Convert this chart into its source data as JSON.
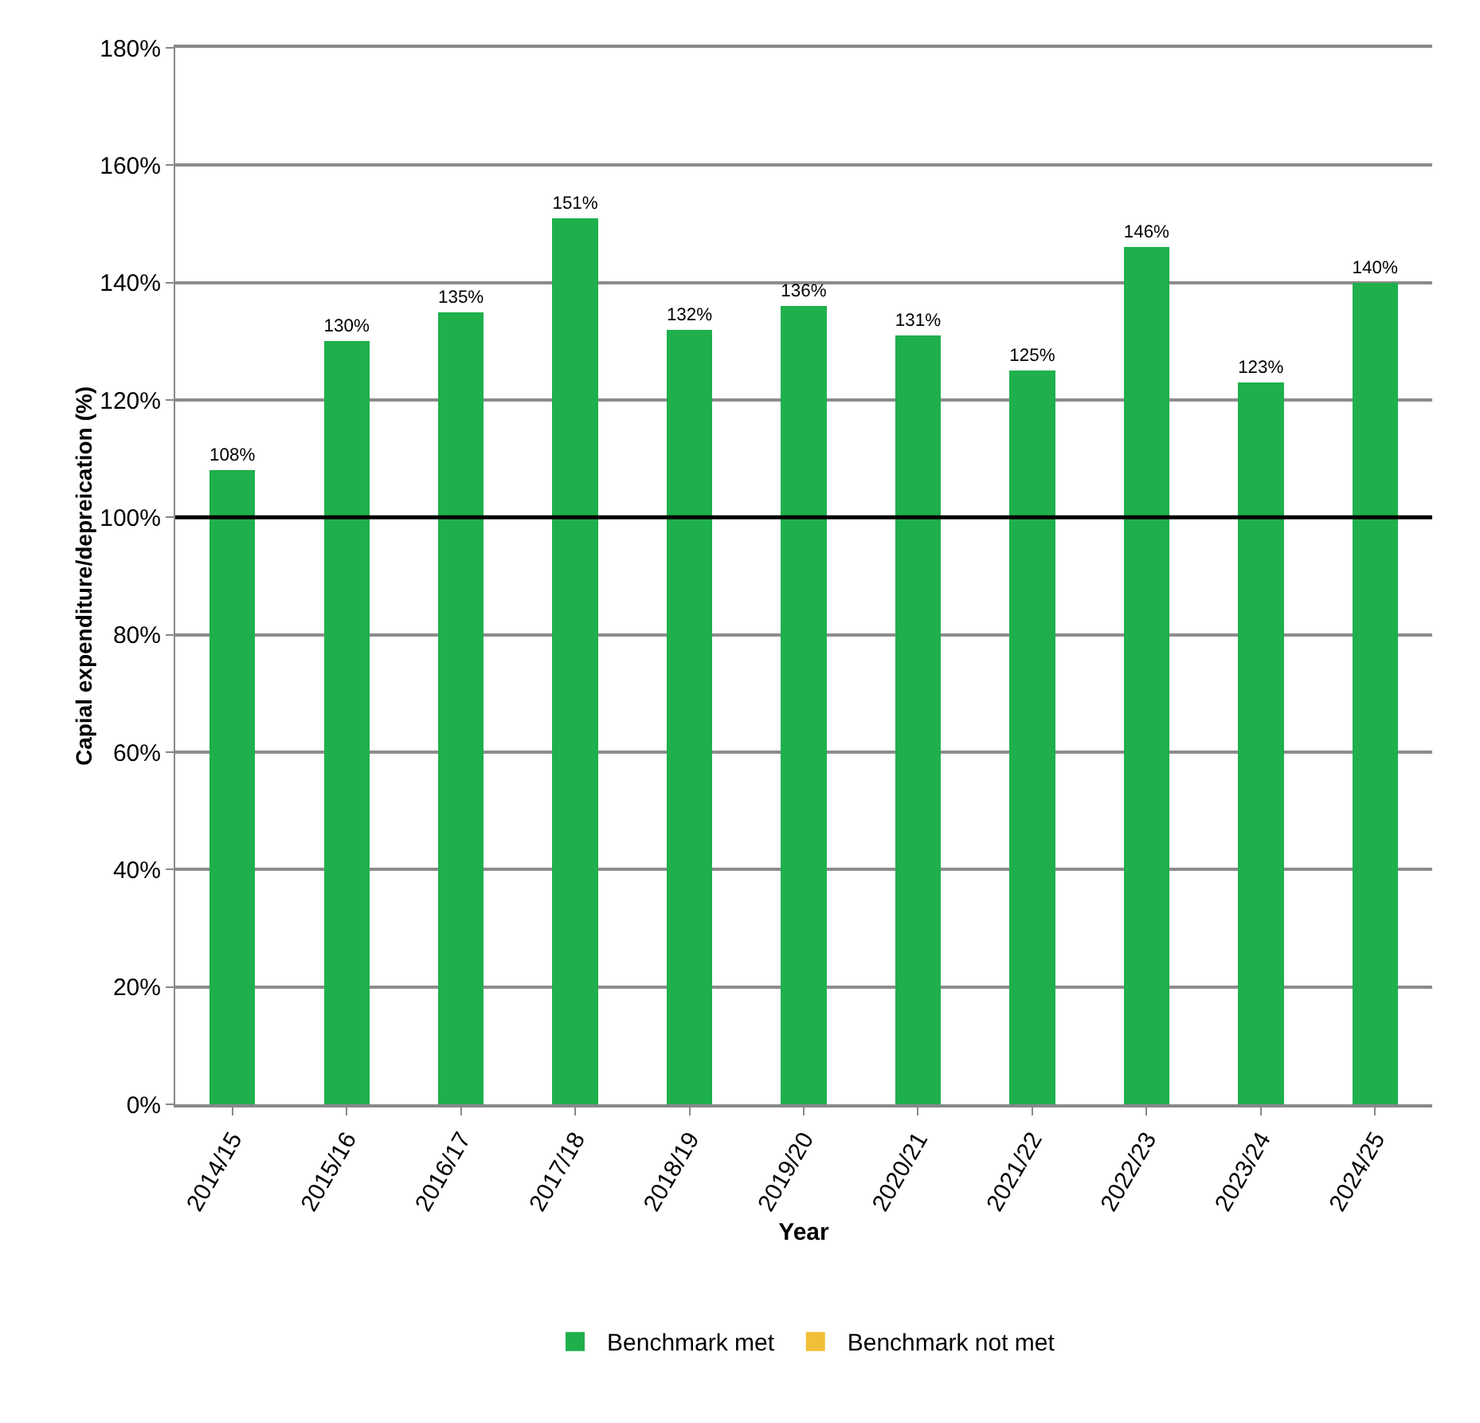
{
  "chart_data": {
    "type": "bar",
    "xlabel": "Year",
    "ylabel": "Capial expenditure/depreication (%)",
    "categories": [
      "2014/15",
      "2015/16",
      "2016/17",
      "2017/18",
      "2018/19",
      "2019/20",
      "2020/21",
      "2021/22",
      "2022/23",
      "2023/24",
      "2024/25"
    ],
    "series": [
      {
        "name": "Benchmark met",
        "color": "#1fb04c",
        "values": [
          108,
          130,
          135,
          151,
          132,
          136,
          131,
          125,
          146,
          123,
          140
        ],
        "value_labels": [
          "108%",
          "130%",
          "135%",
          "151%",
          "132%",
          "136%",
          "131%",
          "125%",
          "146%",
          "123%",
          "140%"
        ]
      },
      {
        "name": "Benchmark not met",
        "color": "#f2c037",
        "values": [
          null,
          null,
          null,
          null,
          null,
          null,
          null,
          null,
          null,
          null,
          null
        ]
      }
    ],
    "stacked": true,
    "ylim": [
      0,
      180
    ],
    "yticks": [
      {
        "value": 0,
        "label": "0%"
      },
      {
        "value": 20,
        "label": "20%"
      },
      {
        "value": 40,
        "label": "40%"
      },
      {
        "value": 60,
        "label": "60%"
      },
      {
        "value": 80,
        "label": "80%"
      },
      {
        "value": 100,
        "label": "100%"
      },
      {
        "value": 120,
        "label": "120%"
      },
      {
        "value": 140,
        "label": "140%"
      },
      {
        "value": 160,
        "label": "160%"
      },
      {
        "value": 180,
        "label": "180%"
      }
    ],
    "grid": "y",
    "legend": "bottom",
    "ref_lines": [
      {
        "axis": "y",
        "value": 100,
        "color": "#000000",
        "line_style": "solid"
      }
    ]
  }
}
